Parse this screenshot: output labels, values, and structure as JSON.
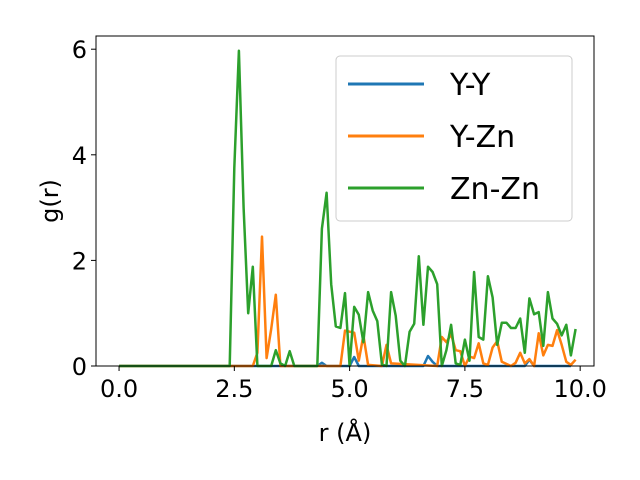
{
  "chart_data": {
    "type": "line",
    "xlabel": "r (Å)",
    "ylabel": "g(r)",
    "xlim": [
      -0.5,
      10.3
    ],
    "ylim": [
      0,
      6.25
    ],
    "xticks": [
      0.0,
      2.5,
      5.0,
      7.5,
      10.0
    ],
    "xtick_labels": [
      "0.0",
      "2.5",
      "5.0",
      "7.5",
      "10.0"
    ],
    "yticks": [
      0,
      2,
      4,
      6
    ],
    "ytick_labels": [
      "0",
      "2",
      "4",
      "6"
    ],
    "legend_position": "top-right",
    "grid": false,
    "series": [
      {
        "name": "Y-Y",
        "color": "#1f77b4",
        "points": [
          [
            0.0,
            0
          ],
          [
            4.3,
            0
          ],
          [
            4.4,
            0.06
          ],
          [
            4.5,
            0
          ],
          [
            5.0,
            0
          ],
          [
            5.1,
            0.17
          ],
          [
            5.2,
            0
          ],
          [
            6.6,
            0
          ],
          [
            6.7,
            0.19
          ],
          [
            6.8,
            0.08
          ],
          [
            6.9,
            0
          ],
          [
            8.8,
            0
          ],
          [
            8.9,
            0.12
          ],
          [
            9.0,
            0
          ],
          [
            9.8,
            0
          ]
        ]
      },
      {
        "name": "Y-Zn",
        "color": "#ff7f0e",
        "points": [
          [
            0.0,
            0
          ],
          [
            2.9,
            0
          ],
          [
            3.0,
            0.25
          ],
          [
            3.1,
            2.45
          ],
          [
            3.2,
            0.15
          ],
          [
            3.3,
            0.7
          ],
          [
            3.4,
            1.35
          ],
          [
            3.5,
            0
          ],
          [
            4.8,
            0
          ],
          [
            4.9,
            0.67
          ],
          [
            5.0,
            0.65
          ],
          [
            5.1,
            0.63
          ],
          [
            5.2,
            0.1
          ],
          [
            5.3,
            0.58
          ],
          [
            5.4,
            0.02
          ],
          [
            5.7,
            0
          ],
          [
            5.8,
            0.4
          ],
          [
            5.9,
            0.05
          ],
          [
            6.9,
            0
          ],
          [
            7.0,
            0.55
          ],
          [
            7.1,
            0.45
          ],
          [
            7.2,
            0.6
          ],
          [
            7.3,
            0.3
          ],
          [
            7.4,
            0.28
          ],
          [
            7.5,
            0
          ],
          [
            7.6,
            0.18
          ],
          [
            7.7,
            0.15
          ],
          [
            7.8,
            0.43
          ],
          [
            7.9,
            0.05
          ],
          [
            8.0,
            0.02
          ],
          [
            8.1,
            0.35
          ],
          [
            8.2,
            0.47
          ],
          [
            8.3,
            0.08
          ],
          [
            8.5,
            0
          ],
          [
            8.6,
            0.06
          ],
          [
            8.7,
            0.25
          ],
          [
            8.8,
            0.05
          ],
          [
            8.9,
            0.13
          ],
          [
            9.0,
            0
          ],
          [
            9.1,
            0.62
          ],
          [
            9.2,
            0.2
          ],
          [
            9.3,
            0.4
          ],
          [
            9.4,
            0.38
          ],
          [
            9.5,
            0.68
          ],
          [
            9.6,
            0.4
          ],
          [
            9.7,
            0.08
          ],
          [
            9.8,
            0.02
          ],
          [
            9.9,
            0.12
          ]
        ]
      },
      {
        "name": "Zn-Zn",
        "color": "#2ca02c",
        "points": [
          [
            0.0,
            0
          ],
          [
            2.4,
            0
          ],
          [
            2.5,
            3.75
          ],
          [
            2.6,
            5.97
          ],
          [
            2.7,
            3.0
          ],
          [
            2.8,
            1.0
          ],
          [
            2.9,
            1.88
          ],
          [
            3.0,
            0
          ],
          [
            3.3,
            0
          ],
          [
            3.4,
            0.3
          ],
          [
            3.5,
            0.05
          ],
          [
            3.6,
            0
          ],
          [
            3.7,
            0.28
          ],
          [
            3.8,
            0
          ],
          [
            4.3,
            0
          ],
          [
            4.4,
            2.6
          ],
          [
            4.5,
            3.28
          ],
          [
            4.6,
            1.55
          ],
          [
            4.7,
            0.75
          ],
          [
            4.8,
            0.72
          ],
          [
            4.9,
            1.38
          ],
          [
            5.0,
            0
          ],
          [
            5.1,
            1.12
          ],
          [
            5.2,
            0.97
          ],
          [
            5.3,
            0.45
          ],
          [
            5.4,
            1.4
          ],
          [
            5.5,
            1.05
          ],
          [
            5.6,
            0.85
          ],
          [
            5.7,
            0.03
          ],
          [
            5.8,
            0
          ],
          [
            5.9,
            1.4
          ],
          [
            6.0,
            0.95
          ],
          [
            6.1,
            0.1
          ],
          [
            6.2,
            0
          ],
          [
            6.3,
            0.65
          ],
          [
            6.4,
            0.8
          ],
          [
            6.5,
            2.08
          ],
          [
            6.6,
            0.78
          ],
          [
            6.7,
            1.88
          ],
          [
            6.8,
            1.78
          ],
          [
            6.9,
            1.55
          ],
          [
            7.0,
            0
          ],
          [
            7.1,
            0.3
          ],
          [
            7.2,
            0.78
          ],
          [
            7.3,
            0.05
          ],
          [
            7.4,
            0.02
          ],
          [
            7.5,
            0.5
          ],
          [
            7.6,
            0.1
          ],
          [
            7.7,
            1.78
          ],
          [
            7.8,
            0.55
          ],
          [
            7.9,
            0.5
          ],
          [
            8.0,
            1.7
          ],
          [
            8.1,
            1.3
          ],
          [
            8.2,
            0.4
          ],
          [
            8.3,
            0.82
          ],
          [
            8.4,
            0.82
          ],
          [
            8.5,
            0.72
          ],
          [
            8.6,
            0.72
          ],
          [
            8.7,
            0.9
          ],
          [
            8.8,
            0.25
          ],
          [
            8.9,
            1.28
          ],
          [
            9.0,
            0.98
          ],
          [
            9.1,
            1.02
          ],
          [
            9.2,
            0.38
          ],
          [
            9.3,
            1.4
          ],
          [
            9.4,
            0.9
          ],
          [
            9.5,
            0.8
          ],
          [
            9.6,
            0.58
          ],
          [
            9.7,
            0.78
          ],
          [
            9.8,
            0.2
          ],
          [
            9.9,
            0.7
          ]
        ]
      }
    ]
  }
}
